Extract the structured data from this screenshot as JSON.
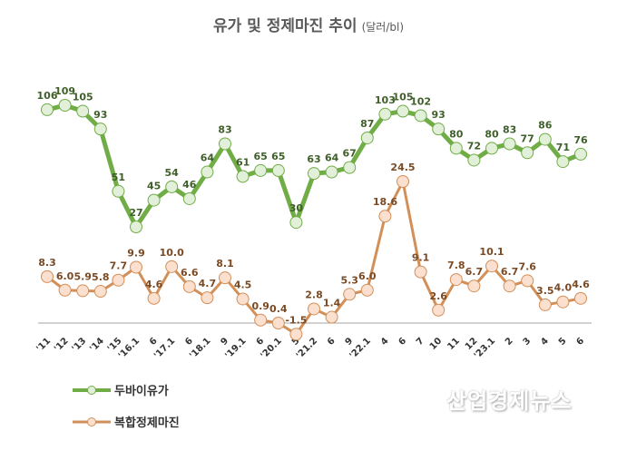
{
  "chart_data": {
    "type": "line",
    "title": "유가 및 정제마진 추이",
    "unit": "(달러/bl)",
    "xlabel": "",
    "ylabel": "",
    "grid": false,
    "legend_position": "bottom-left",
    "categories": [
      "'11",
      "'12",
      "'13",
      "'14",
      "'15",
      "'16.1",
      "6",
      "'17.1",
      "6",
      "'18.1",
      "9",
      "'19.1",
      "6",
      "'20.1",
      "5",
      "'21.2",
      "6",
      "9",
      "'22.1",
      "4",
      "6",
      "7",
      "10",
      "11",
      "12",
      "'23.1",
      "2",
      "3",
      "4",
      "5",
      "6"
    ],
    "series": [
      {
        "name": "두바이유가",
        "color": "#70AD47",
        "marker_fill": "#E2F0D9",
        "label_color": "#3F5F2A",
        "values": [
          106,
          109,
          105,
          93,
          51,
          27,
          45,
          54,
          46,
          64,
          83,
          61,
          65,
          65,
          30,
          63,
          64,
          67,
          87,
          103,
          105,
          102,
          93,
          80,
          72,
          80,
          83,
          77,
          86,
          71,
          76
        ],
        "labels": [
          "106",
          "109",
          "105",
          "93",
          "51",
          "27",
          "45",
          "54",
          "46",
          "64",
          "83",
          "61",
          "65",
          "65",
          "30",
          "63",
          "64",
          "67",
          "87",
          "103",
          "105",
          "102",
          "93",
          "80",
          "72",
          "80",
          "83",
          "77",
          "86",
          "71",
          "76"
        ]
      },
      {
        "name": "복합정제마진",
        "color": "#D38F58",
        "marker_fill": "#FBE0CF",
        "label_color": "#7A4A25",
        "values": [
          8.3,
          6.0,
          5.9,
          5.8,
          7.7,
          9.9,
          4.6,
          10.0,
          6.6,
          4.7,
          8.1,
          4.5,
          0.9,
          0.4,
          -1.5,
          2.8,
          1.4,
          5.3,
          6.0,
          18.6,
          24.5,
          9.1,
          2.6,
          7.8,
          6.7,
          10.1,
          6.7,
          7.6,
          3.5,
          4.0,
          4.6
        ],
        "labels": [
          "8.3",
          "6.0",
          "5.9",
          "5.8",
          "7.7",
          "9.9",
          "4.6",
          "10.0",
          "6.6",
          "4.7",
          "8.1",
          "4.5",
          "0.9",
          "0.4",
          "-1.5",
          "2.8",
          "1.4",
          "5.3",
          "6.0",
          "18.6",
          "24.5",
          "9.1",
          "2.6",
          "7.8",
          "6.7",
          "10.1",
          "6.7",
          "7.6",
          "3.5",
          "4.0",
          "4.6"
        ]
      }
    ]
  },
  "watermark": "산업경제뉴스"
}
